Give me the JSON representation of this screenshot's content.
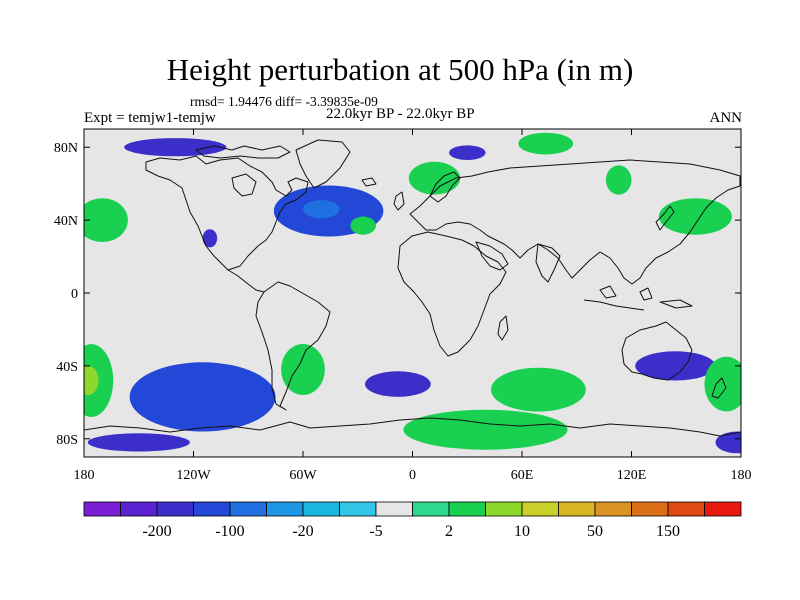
{
  "header": {
    "title": "Height perturbation at 500 hPa (in m)",
    "stats": "rmsd= 1.94476 diff= -3.39835e-09",
    "experiment": "Expt = temjw1-temjw",
    "period": "22.0kyr BP - 22.0kyr BP",
    "season": "ANN"
  },
  "chart_data": {
    "type": "heatmap",
    "title": "Height perturbation at 500 hPa (in m)",
    "projection": "cylindrical equidistant",
    "xlim": [
      -180,
      180
    ],
    "ylim": [
      -90,
      90
    ],
    "x_ticks": [
      {
        "value": -180,
        "label": "180"
      },
      {
        "value": -120,
        "label": "120W"
      },
      {
        "value": -60,
        "label": "60W"
      },
      {
        "value": 0,
        "label": "0"
      },
      {
        "value": 60,
        "label": "60E"
      },
      {
        "value": 120,
        "label": "120E"
      },
      {
        "value": 180,
        "label": "180"
      }
    ],
    "y_ticks": [
      {
        "value": 80,
        "label": "80N"
      },
      {
        "value": 40,
        "label": "40N"
      },
      {
        "value": 0,
        "label": "0"
      },
      {
        "value": -40,
        "label": "40S"
      },
      {
        "value": -80,
        "label": "80S"
      }
    ],
    "colorbar": {
      "colors": [
        "#7a1fd6",
        "#5a22d1",
        "#3c2fc9",
        "#2348d8",
        "#1f6fe0",
        "#1e96e6",
        "#19b6e0",
        "#33c6e8",
        "#e6e6e6",
        "#2ed88c",
        "#1ad050",
        "#8ed82b",
        "#c9d02a",
        "#d8b522",
        "#d99320",
        "#dc7018",
        "#e04a12",
        "#e8190e"
      ],
      "labels": [
        "-200",
        "-100",
        "-20",
        "-5",
        "2",
        "10",
        "50",
        "150"
      ],
      "label_after_box": [
        1,
        3,
        5,
        7,
        9,
        11,
        13,
        15
      ]
    },
    "anomalies": [
      {
        "region": "North Atlantic / Greenland",
        "lon": -46,
        "lat": 45,
        "level": 3,
        "rx": 30,
        "ry": 14
      },
      {
        "region": "Northwest Atlantic core",
        "lon": -50,
        "lat": 46,
        "level": 4,
        "rx": 10,
        "ry": 5
      },
      {
        "region": "Arctic Canada",
        "lon": -130,
        "lat": 80,
        "level": 2,
        "rx": 28,
        "ry": 5
      },
      {
        "region": "Arctic Siberia",
        "lon": 30,
        "lat": 77,
        "level": 2,
        "rx": 10,
        "ry": 4
      },
      {
        "region": "Western North America",
        "lon": -111,
        "lat": 30,
        "level": 2,
        "rx": 4,
        "ry": 5
      },
      {
        "region": "South Pacific core",
        "lon": -112,
        "lat": -57,
        "level": 4,
        "rx": 28,
        "ry": 12
      },
      {
        "region": "South Pacific",
        "lon": -115,
        "lat": -57,
        "level": 3,
        "rx": 40,
        "ry": 19
      },
      {
        "region": "Southern Ocean south of Africa",
        "lon": -8,
        "lat": -50,
        "level": 2,
        "rx": 18,
        "ry": 7
      },
      {
        "region": "South of Australia",
        "lon": 144,
        "lat": -40,
        "level": 2,
        "rx": 22,
        "ry": 8
      },
      {
        "region": "Ross Sea",
        "lon": 178,
        "lat": -82,
        "level": 2,
        "rx": 12,
        "ry": 6
      },
      {
        "region": "Antarctic coast west",
        "lon": -150,
        "lat": -82,
        "level": 2,
        "rx": 28,
        "ry": 5
      },
      {
        "region": "North Pacific west",
        "lon": -170,
        "lat": 40,
        "level": 10,
        "rx": 14,
        "ry": 12
      },
      {
        "region": "North Pacific east",
        "lon": 155,
        "lat": 42,
        "level": 10,
        "rx": 20,
        "ry": 10
      },
      {
        "region": "Eastern Europe / Scandinavia",
        "lon": 12,
        "lat": 63,
        "level": 10,
        "rx": 14,
        "ry": 9
      },
      {
        "region": "Arctic Ocean east",
        "lon": 73,
        "lat": 82,
        "level": 10,
        "rx": 15,
        "ry": 6
      },
      {
        "region": "Siberia",
        "lon": 113,
        "lat": 62,
        "level": 10,
        "rx": 7,
        "ry": 8
      },
      {
        "region": "North Atlantic mid",
        "lon": -27,
        "lat": 37,
        "level": 10,
        "rx": 7,
        "ry": 5
      },
      {
        "region": "Southern Ocean Indian",
        "lon": 69,
        "lat": -53,
        "level": 10,
        "rx": 26,
        "ry": 12
      },
      {
        "region": "South Pacific east",
        "lon": -176,
        "lat": -48,
        "level": 10,
        "rx": 12,
        "ry": 20
      },
      {
        "region": "South Pacific east core",
        "lon": -178,
        "lat": -48,
        "level": 11,
        "rx": 6,
        "ry": 8
      },
      {
        "region": "South Atlantic",
        "lon": -60,
        "lat": -42,
        "level": 10,
        "rx": 12,
        "ry": 14
      },
      {
        "region": "Southern Ocean Pacific sector",
        "lon": 172,
        "lat": -50,
        "level": 10,
        "rx": 12,
        "ry": 15
      },
      {
        "region": "Antarctica east",
        "lon": 40,
        "lat": -75,
        "level": 10,
        "rx": 45,
        "ry": 11
      }
    ]
  }
}
